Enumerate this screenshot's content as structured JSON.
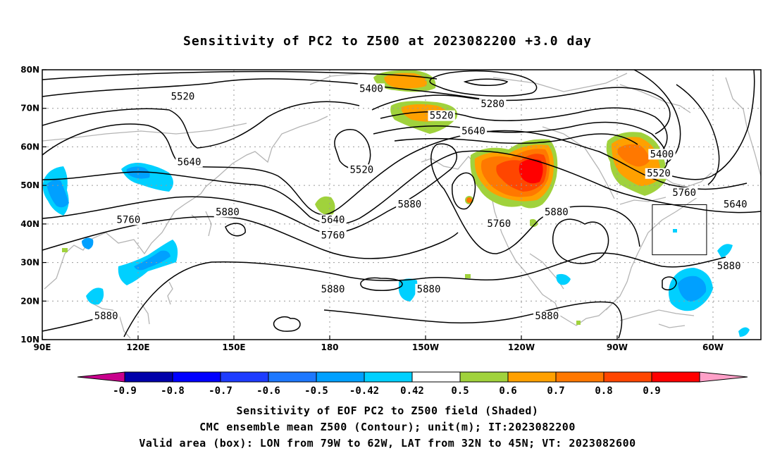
{
  "title": "Sensitivity of PC2 to Z500 at 2023082200 +3.0 day",
  "axes": {
    "x_ticks": [
      "90E",
      "120E",
      "150E",
      "180",
      "150W",
      "120W",
      "90W",
      "60W"
    ],
    "x_lons": [
      90,
      120,
      150,
      180,
      210,
      240,
      270,
      300
    ],
    "y_ticks": [
      "10N",
      "20N",
      "30N",
      "40N",
      "50N",
      "60N",
      "70N",
      "80N"
    ],
    "y_lats": [
      10,
      20,
      30,
      40,
      50,
      60,
      70,
      80
    ],
    "lon_range": [
      90,
      315
    ],
    "lat_range": [
      10,
      80
    ]
  },
  "contour_labels": [
    {
      "text": "5520",
      "lon": 134,
      "lat": 73
    },
    {
      "text": "5400",
      "lon": 193,
      "lat": 75
    },
    {
      "text": "5280",
      "lon": 231,
      "lat": 71
    },
    {
      "text": "5520",
      "lon": 215,
      "lat": 68
    },
    {
      "text": "5640",
      "lon": 225,
      "lat": 64
    },
    {
      "text": "5400",
      "lon": 284,
      "lat": 58
    },
    {
      "text": "5520",
      "lon": 283,
      "lat": 53
    },
    {
      "text": "5640",
      "lon": 136,
      "lat": 56
    },
    {
      "text": "5520",
      "lon": 190,
      "lat": 54
    },
    {
      "text": "5760",
      "lon": 291,
      "lat": 48
    },
    {
      "text": "5640",
      "lon": 307,
      "lat": 45
    },
    {
      "text": "5880",
      "lon": 205,
      "lat": 45
    },
    {
      "text": "5760",
      "lon": 233,
      "lat": 40
    },
    {
      "text": "5880",
      "lon": 251,
      "lat": 43
    },
    {
      "text": "5880",
      "lon": 148,
      "lat": 43
    },
    {
      "text": "5760",
      "lon": 117,
      "lat": 41
    },
    {
      "text": "5640",
      "lon": 181,
      "lat": 41
    },
    {
      "text": "5760",
      "lon": 181,
      "lat": 37
    },
    {
      "text": "5880",
      "lon": 305,
      "lat": 29
    },
    {
      "text": "5880",
      "lon": 181,
      "lat": 23
    },
    {
      "text": "5880",
      "lon": 211,
      "lat": 23
    },
    {
      "text": "5880",
      "lon": 110,
      "lat": 16
    },
    {
      "text": "5880",
      "lon": 248,
      "lat": 16
    }
  ],
  "valid_box": {
    "lon_min": 281,
    "lon_max": 298,
    "lat_min": 32,
    "lat_max": 45
  },
  "colorbar": {
    "labels": [
      "-0.9",
      "-0.8",
      "-0.7",
      "-0.6",
      "-0.5",
      "-0.42",
      "0.42",
      "0.5",
      "0.6",
      "0.7",
      "0.8",
      "0.9"
    ],
    "colors": [
      "#0000aa",
      "#0000ff",
      "#1e3cff",
      "#1e78ff",
      "#00a0ff",
      "#00d0ff",
      "#ffffff",
      "#a0d23c",
      "#ffa000",
      "#ff7800",
      "#ff4600",
      "#ff0000"
    ],
    "low_end": "#c8008c",
    "high_end": "#ffa0c8"
  },
  "footer": {
    "line1": "Sensitivity of EOF PC2 to Z500 field (Shaded)",
    "line2": "CMC ensemble mean Z500 (Contour); unit(m); IT:2023082200",
    "line3": "Valid area (box): LON from 79W to 62W, LAT from 32N to 45N; VT: 2023082600"
  }
}
